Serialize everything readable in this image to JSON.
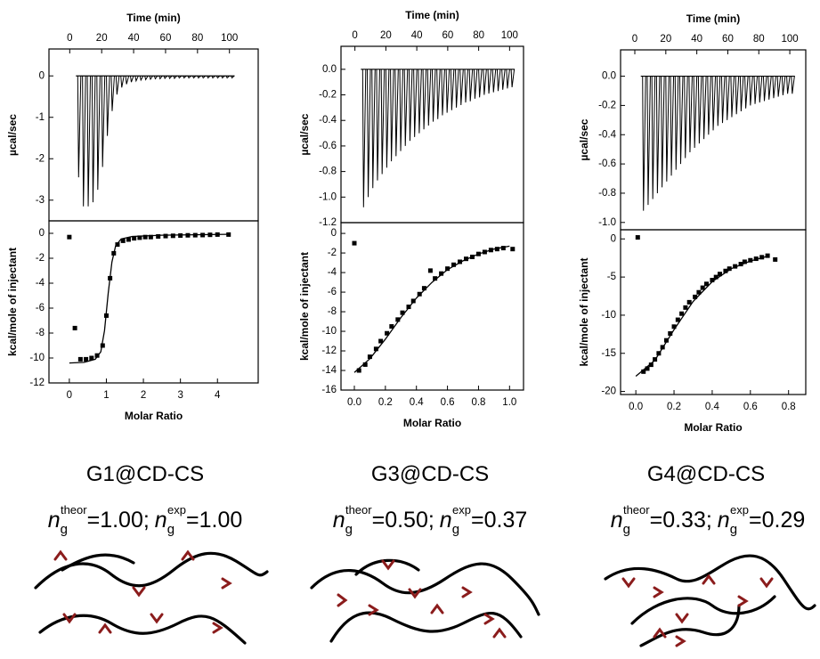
{
  "chart_data": [
    {
      "type": "spike",
      "x_label": "Time (min)",
      "y_label": "µcal/sec",
      "x_axis": "top",
      "color": "#000000",
      "x": [
        5,
        8,
        11,
        14,
        17,
        20,
        23,
        26,
        29,
        32,
        35,
        38,
        41,
        44,
        47,
        50,
        53,
        56,
        59,
        62,
        65,
        68,
        71,
        74,
        77,
        80,
        83,
        86,
        89,
        92,
        95,
        98,
        101
      ],
      "values": [
        -2.45,
        -3.15,
        -3.15,
        -3.05,
        -2.75,
        -2.2,
        -1.45,
        -0.85,
        -0.45,
        -0.28,
        -0.2,
        -0.15,
        -0.12,
        -0.1,
        -0.09,
        -0.08,
        -0.07,
        -0.07,
        -0.06,
        -0.06,
        -0.06,
        -0.05,
        -0.05,
        -0.05,
        -0.05,
        -0.05,
        -0.05,
        -0.05,
        -0.05,
        -0.05,
        -0.05,
        -0.05,
        -0.05
      ],
      "xlim": [
        -13,
        118
      ],
      "xticks": [
        0,
        20,
        40,
        60,
        80,
        100
      ],
      "ylim": [
        -3.5,
        0.65
      ],
      "yticks": [
        0,
        -1,
        -2,
        -3
      ]
    },
    {
      "type": "scatter",
      "x_label": "Molar Ratio",
      "y_label": "kcal/mole of injectant",
      "x_axis": "bottom",
      "series": [
        {
          "style": "points",
          "color": "#000000",
          "x": [
            0.0,
            0.15,
            0.3,
            0.45,
            0.6,
            0.75,
            0.9,
            1.0,
            1.1,
            1.2,
            1.3,
            1.45,
            1.6,
            1.75,
            1.9,
            2.05,
            2.2,
            2.4,
            2.6,
            2.8,
            3.0,
            3.2,
            3.4,
            3.6,
            3.8,
            4.0,
            4.3
          ],
          "values": [
            -0.3,
            -7.6,
            -10.1,
            -10.1,
            -10.0,
            -9.8,
            -9.0,
            -6.6,
            -3.6,
            -1.6,
            -0.9,
            -0.6,
            -0.5,
            -0.4,
            -0.35,
            -0.3,
            -0.3,
            -0.25,
            -0.22,
            -0.2,
            -0.18,
            -0.16,
            -0.15,
            -0.14,
            -0.12,
            -0.1,
            -0.1
          ]
        },
        {
          "style": "line",
          "color": "#000000",
          "x": [
            0,
            0.4,
            0.7,
            0.85,
            0.95,
            1.05,
            1.15,
            1.25,
            1.4,
            1.7,
            2.5,
            4.3
          ],
          "values": [
            -10.4,
            -10.35,
            -10.1,
            -9.5,
            -7.8,
            -4.8,
            -2.3,
            -1.0,
            -0.45,
            -0.25,
            -0.15,
            -0.08
          ]
        }
      ],
      "xlim": [
        -0.55,
        5.1
      ],
      "xticks": [
        0,
        1,
        2,
        3,
        4
      ],
      "ylim": [
        -12,
        1
      ],
      "yticks": [
        0,
        -2,
        -4,
        -6,
        -8,
        -10,
        -12
      ]
    },
    {
      "type": "spike",
      "x_label": "Time (min)",
      "y_label": "µcal/sec",
      "x_axis": "top",
      "color": "#000000",
      "x": [
        5,
        8,
        11,
        14,
        17,
        20,
        23,
        26,
        29,
        32,
        35,
        38,
        41,
        44,
        47,
        50,
        53,
        56,
        59,
        62,
        65,
        68,
        71,
        74,
        77,
        80,
        83,
        86,
        89,
        92,
        95,
        98,
        101
      ],
      "values": [
        -1.08,
        -1.0,
        -0.93,
        -0.87,
        -0.82,
        -0.77,
        -0.72,
        -0.68,
        -0.64,
        -0.6,
        -0.56,
        -0.53,
        -0.5,
        -0.47,
        -0.44,
        -0.41,
        -0.39,
        -0.36,
        -0.34,
        -0.32,
        -0.3,
        -0.28,
        -0.26,
        -0.25,
        -0.23,
        -0.22,
        -0.2,
        -0.19,
        -0.18,
        -0.17,
        -0.16,
        -0.15,
        -0.14
      ],
      "xlim": [
        -9,
        109
      ],
      "xticks": [
        0,
        20,
        40,
        60,
        80,
        100
      ],
      "ylim": [
        -1.2,
        0.18
      ],
      "yticks": [
        {
          "value": 0,
          "label": "0.0"
        },
        -0.2,
        -0.4,
        -0.6,
        -0.8,
        {
          "value": -1,
          "label": "-1.0"
        },
        -1.2
      ]
    },
    {
      "type": "scatter",
      "x_label": "Molar Ratio",
      "y_label": "kcal/mole of injectant",
      "x_axis": "bottom",
      "series": [
        {
          "style": "points",
          "color": "#000000",
          "x": [
            0.0,
            0.03,
            0.07,
            0.1,
            0.14,
            0.17,
            0.21,
            0.24,
            0.28,
            0.31,
            0.35,
            0.38,
            0.42,
            0.45,
            0.49,
            0.52,
            0.56,
            0.6,
            0.64,
            0.68,
            0.72,
            0.76,
            0.8,
            0.84,
            0.88,
            0.92,
            0.96,
            1.02
          ],
          "values": [
            -1.0,
            -14.0,
            -13.4,
            -12.6,
            -11.8,
            -11.0,
            -10.2,
            -9.5,
            -8.8,
            -8.1,
            -7.5,
            -6.9,
            -6.2,
            -5.6,
            -3.8,
            -4.6,
            -4.1,
            -3.6,
            -3.2,
            -2.9,
            -2.6,
            -2.4,
            -2.1,
            -1.9,
            -1.7,
            -1.6,
            -1.5,
            -1.6
          ]
        },
        {
          "style": "line",
          "color": "#000000",
          "x": [
            0.0,
            0.1,
            0.2,
            0.3,
            0.4,
            0.5,
            0.6,
            0.7,
            0.8,
            0.9,
            1.0
          ],
          "values": [
            -14.2,
            -12.8,
            -10.8,
            -8.6,
            -6.6,
            -5.0,
            -3.7,
            -2.8,
            -2.1,
            -1.6,
            -1.3
          ]
        }
      ],
      "xlim": [
        -0.086,
        1.09
      ],
      "xticks": [
        {
          "value": 0,
          "label": "0.0"
        },
        0.2,
        0.4,
        0.6,
        0.8,
        {
          "value": 1,
          "label": "1.0"
        }
      ],
      "ylim": [
        -16,
        1.1
      ],
      "yticks": [
        0,
        -2,
        -4,
        -6,
        -8,
        -10,
        -12,
        -14,
        -16
      ]
    },
    {
      "type": "spike",
      "x_label": "Time (min)",
      "y_label": "µcal/sec",
      "x_axis": "top",
      "color": "#000000",
      "x": [
        5,
        8,
        11,
        14,
        17,
        20,
        23,
        26,
        29,
        32,
        35,
        38,
        41,
        44,
        47,
        50,
        53,
        56,
        59,
        62,
        65,
        68,
        71,
        74,
        77,
        80,
        83,
        86,
        89,
        92,
        95,
        98,
        101
      ],
      "values": [
        -0.92,
        -0.88,
        -0.84,
        -0.8,
        -0.76,
        -0.72,
        -0.68,
        -0.64,
        -0.6,
        -0.56,
        -0.52,
        -0.49,
        -0.46,
        -0.43,
        -0.4,
        -0.37,
        -0.34,
        -0.32,
        -0.3,
        -0.28,
        -0.26,
        -0.24,
        -0.22,
        -0.2,
        -0.19,
        -0.18,
        -0.17,
        -0.16,
        -0.15,
        -0.14,
        -0.13,
        -0.12,
        -0.12
      ],
      "xlim": [
        -9.2,
        110.3
      ],
      "xticks": [
        0,
        20,
        40,
        60,
        80,
        100
      ],
      "ylim": [
        -1.05,
        0.18
      ],
      "yticks": [
        {
          "value": 0,
          "label": "0.0"
        },
        -0.2,
        -0.4,
        -0.6,
        -0.8,
        {
          "value": -1,
          "label": "-1.0"
        }
      ]
    },
    {
      "type": "scatter",
      "x_label": "Molar Ratio",
      "y_label": "kcal/mole of injectant",
      "x_axis": "bottom",
      "series": [
        {
          "style": "points",
          "color": "#000000",
          "x": [
            0.01,
            0.04,
            0.06,
            0.08,
            0.1,
            0.12,
            0.14,
            0.16,
            0.18,
            0.2,
            0.22,
            0.24,
            0.26,
            0.28,
            0.31,
            0.33,
            0.35,
            0.37,
            0.4,
            0.42,
            0.44,
            0.47,
            0.49,
            0.52,
            0.55,
            0.57,
            0.6,
            0.63,
            0.66,
            0.69,
            0.73
          ],
          "values": [
            0.2,
            -17.4,
            -17.0,
            -16.5,
            -15.8,
            -15.0,
            -14.2,
            -13.3,
            -12.4,
            -11.5,
            -10.6,
            -9.8,
            -9.0,
            -8.3,
            -7.6,
            -7.0,
            -6.4,
            -5.9,
            -5.4,
            -5.0,
            -4.6,
            -4.2,
            -3.9,
            -3.6,
            -3.3,
            -3.0,
            -2.8,
            -2.6,
            -2.4,
            -2.2,
            -2.7
          ]
        },
        {
          "style": "line",
          "color": "#000000",
          "x": [
            0.0,
            0.1,
            0.2,
            0.3,
            0.4,
            0.5,
            0.6,
            0.7
          ],
          "values": [
            -18.0,
            -15.9,
            -11.9,
            -8.2,
            -5.6,
            -3.9,
            -2.9,
            -2.2
          ]
        }
      ],
      "xlim": [
        -0.08,
        0.89
      ],
      "xticks": [
        {
          "value": 0,
          "label": "0.0"
        },
        0.2,
        0.4,
        0.6,
        0.8
      ],
      "ylim": [
        -20.4,
        1.2
      ],
      "yticks": [
        0,
        -5,
        -10,
        -15,
        -20
      ]
    }
  ],
  "captions": [
    {
      "name": "G1@CD-CS",
      "symbol": "n",
      "subscript": "g",
      "sup1": "theor",
      "value1": "=1.00;",
      "sup2": "exp",
      "value2": "=1.00"
    },
    {
      "name": "G3@CD-CS",
      "symbol": "n",
      "subscript": "g",
      "sup1": "theor",
      "value1": "=0.50;",
      "sup2": "exp",
      "value2": "=0.37"
    },
    {
      "name": "G4@CD-CS",
      "symbol": "n",
      "subscript": "g",
      "sup1": "theor",
      "value1": "=0.33;",
      "sup2": "exp",
      "value2": "=0.29"
    }
  ]
}
